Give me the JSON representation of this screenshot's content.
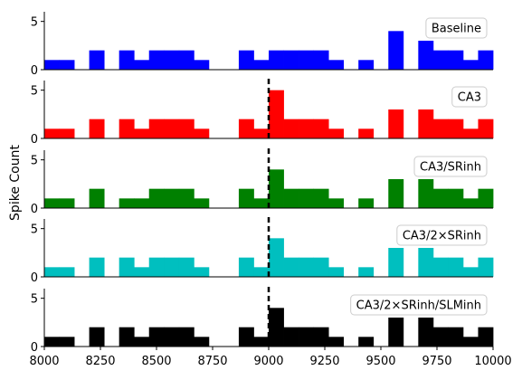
{
  "chart_data": {
    "type": "bar",
    "ylabel": "Spike Count",
    "x_ticks": [
      8000,
      8250,
      8500,
      8750,
      9000,
      9250,
      9500,
      9750,
      10000
    ],
    "y_ticks": [
      0,
      5
    ],
    "xlim": [
      8000,
      10000
    ],
    "ylim": [
      0,
      6
    ],
    "bin_width": 66.67,
    "bin_starts": [
      8000,
      8066.67,
      8133.33,
      8200,
      8266.67,
      8333.33,
      8400,
      8466.67,
      8533.33,
      8600,
      8666.67,
      8733.33,
      8800,
      8866.67,
      8933.33,
      9000,
      9066.67,
      9133.33,
      9200,
      9266.67,
      9333.33,
      9400,
      9466.67,
      9533.33,
      9600,
      9666.67,
      9733.33,
      9800,
      9866.67,
      9933.33
    ],
    "event_marker_x": 9000,
    "panels": [
      {
        "name": "Baseline",
        "color": "#0000ff",
        "show_marker": false,
        "values": [
          1,
          1,
          0,
          2,
          0,
          2,
          1,
          2,
          2,
          2,
          1,
          0,
          0,
          2,
          1,
          2,
          2,
          2,
          2,
          1,
          0,
          1,
          0,
          4,
          0,
          3,
          2,
          2,
          1,
          2
        ]
      },
      {
        "name": "CA3",
        "color": "#ff0000",
        "show_marker": true,
        "values": [
          1,
          1,
          0,
          2,
          0,
          2,
          1,
          2,
          2,
          2,
          1,
          0,
          0,
          2,
          1,
          5,
          2,
          2,
          2,
          1,
          0,
          1,
          0,
          3,
          0,
          3,
          2,
          2,
          1,
          2
        ]
      },
      {
        "name": "CA3/SRinh",
        "color": "#008000",
        "show_marker": true,
        "values": [
          1,
          1,
          0,
          2,
          0,
          1,
          1,
          2,
          2,
          2,
          1,
          0,
          0,
          2,
          1,
          4,
          2,
          2,
          2,
          1,
          0,
          1,
          0,
          3,
          0,
          3,
          2,
          2,
          1,
          2
        ]
      },
      {
        "name": "CA3/2$\\times$SRinh",
        "color": "#00bfbf",
        "show_marker": true,
        "values": [
          1,
          1,
          0,
          2,
          0,
          2,
          1,
          2,
          2,
          2,
          1,
          0,
          0,
          2,
          1,
          4,
          2,
          2,
          2,
          1,
          0,
          1,
          0,
          3,
          0,
          3,
          2,
          2,
          1,
          2
        ]
      },
      {
        "name": "CA3/2$\\times$SRinh/SLMinh",
        "color": "#000000",
        "show_marker": true,
        "values": [
          1,
          1,
          0,
          2,
          0,
          2,
          1,
          2,
          2,
          2,
          1,
          0,
          0,
          2,
          1,
          4,
          2,
          2,
          2,
          1,
          0,
          1,
          0,
          3,
          0,
          3,
          2,
          2,
          1,
          2
        ]
      }
    ]
  }
}
